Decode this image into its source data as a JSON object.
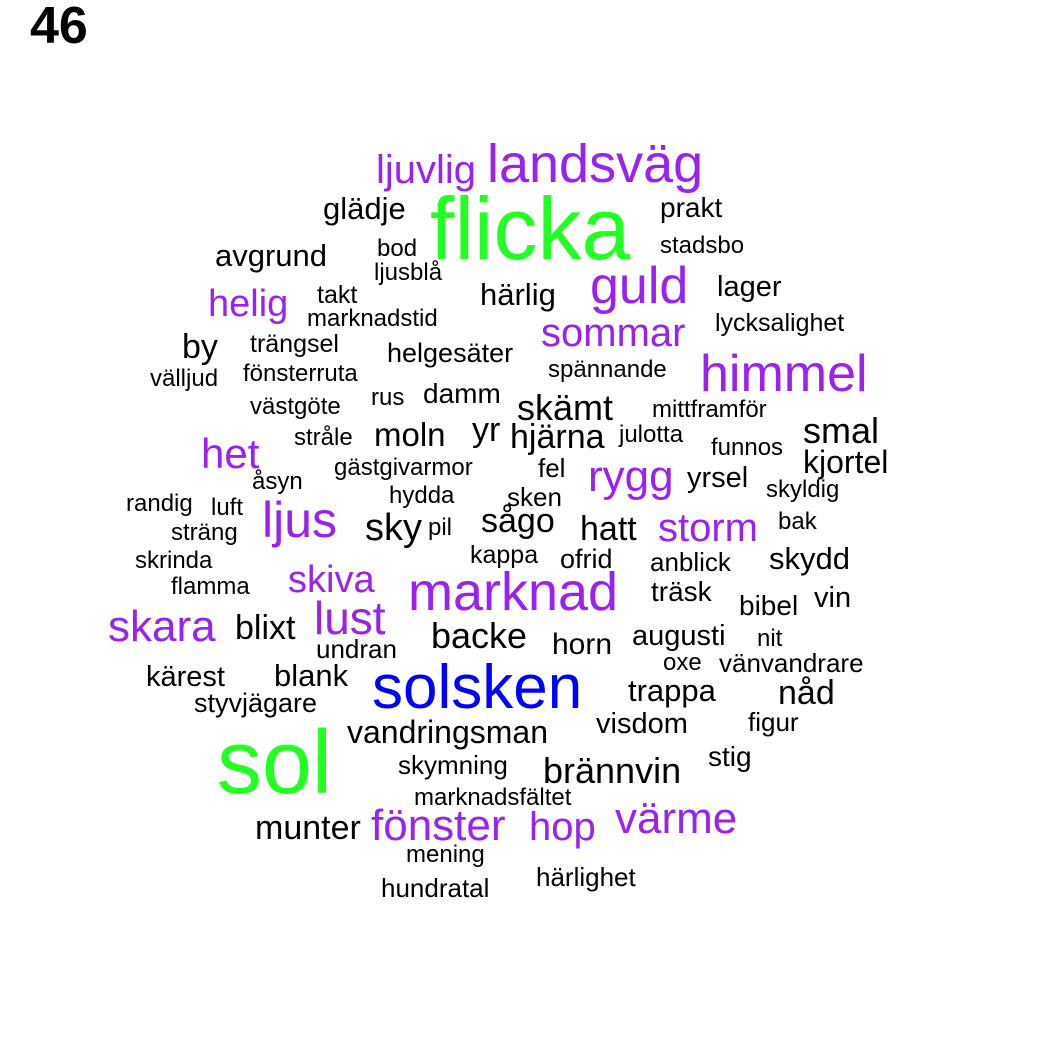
{
  "page_number": "46",
  "colors": {
    "green": "#22ff22",
    "blue": "#0000ff",
    "purple": "#9922ee",
    "black": "#000000"
  },
  "words": [
    {
      "text": "landsväg",
      "color": "purple"
    },
    {
      "text": "ljuvlig",
      "color": "purple"
    },
    {
      "text": "glädje",
      "color": "black"
    },
    {
      "text": "flicka",
      "color": "green"
    },
    {
      "text": "prakt",
      "color": "black"
    },
    {
      "text": "avgrund",
      "color": "black"
    },
    {
      "text": "bod",
      "color": "black"
    },
    {
      "text": "stadsbo",
      "color": "black"
    },
    {
      "text": "ljusblå",
      "color": "black"
    },
    {
      "text": "guld",
      "color": "purple"
    },
    {
      "text": "lager",
      "color": "black"
    },
    {
      "text": "helig",
      "color": "purple"
    },
    {
      "text": "takt",
      "color": "black"
    },
    {
      "text": "härlig",
      "color": "black"
    },
    {
      "text": "marknadstid",
      "color": "black"
    },
    {
      "text": "sommar",
      "color": "purple"
    },
    {
      "text": "lycksalighet",
      "color": "black"
    },
    {
      "text": "by",
      "color": "black"
    },
    {
      "text": "trängsel",
      "color": "black"
    },
    {
      "text": "helgesäter",
      "color": "black"
    },
    {
      "text": "himmel",
      "color": "purple"
    },
    {
      "text": "spännande",
      "color": "black"
    },
    {
      "text": "välljud",
      "color": "black"
    },
    {
      "text": "fönsterruta",
      "color": "black"
    },
    {
      "text": "damm",
      "color": "black"
    },
    {
      "text": "rus",
      "color": "black"
    },
    {
      "text": "västgöte",
      "color": "black"
    },
    {
      "text": "skämt",
      "color": "black"
    },
    {
      "text": "mittframför",
      "color": "black"
    },
    {
      "text": "yr",
      "color": "black"
    },
    {
      "text": "smal",
      "color": "black"
    },
    {
      "text": "moln",
      "color": "black"
    },
    {
      "text": "hjärna",
      "color": "black"
    },
    {
      "text": "julotta",
      "color": "black"
    },
    {
      "text": "stråle",
      "color": "black"
    },
    {
      "text": "het",
      "color": "purple"
    },
    {
      "text": "funnos",
      "color": "black"
    },
    {
      "text": "kjortel",
      "color": "black"
    },
    {
      "text": "gästgivarmor",
      "color": "black"
    },
    {
      "text": "fel",
      "color": "black"
    },
    {
      "text": "rygg",
      "color": "purple"
    },
    {
      "text": "åsyn",
      "color": "black"
    },
    {
      "text": "yrsel",
      "color": "black"
    },
    {
      "text": "skyldig",
      "color": "black"
    },
    {
      "text": "randig",
      "color": "black"
    },
    {
      "text": "hydda",
      "color": "black"
    },
    {
      "text": "sken",
      "color": "black"
    },
    {
      "text": "luft",
      "color": "black"
    },
    {
      "text": "ljus",
      "color": "purple"
    },
    {
      "text": "sågo",
      "color": "black"
    },
    {
      "text": "bak",
      "color": "black"
    },
    {
      "text": "sträng",
      "color": "black"
    },
    {
      "text": "sky",
      "color": "black"
    },
    {
      "text": "pil",
      "color": "black"
    },
    {
      "text": "hatt",
      "color": "black"
    },
    {
      "text": "storm",
      "color": "purple"
    },
    {
      "text": "kappa",
      "color": "black"
    },
    {
      "text": "skrinda",
      "color": "black"
    },
    {
      "text": "ofrid",
      "color": "black"
    },
    {
      "text": "anblick",
      "color": "black"
    },
    {
      "text": "skydd",
      "color": "black"
    },
    {
      "text": "skiva",
      "color": "purple"
    },
    {
      "text": "flamma",
      "color": "black"
    },
    {
      "text": "marknad",
      "color": "purple"
    },
    {
      "text": "träsk",
      "color": "black"
    },
    {
      "text": "vin",
      "color": "black"
    },
    {
      "text": "bibel",
      "color": "black"
    },
    {
      "text": "lust",
      "color": "purple"
    },
    {
      "text": "skara",
      "color": "purple"
    },
    {
      "text": "blixt",
      "color": "black"
    },
    {
      "text": "backe",
      "color": "black"
    },
    {
      "text": "augusti",
      "color": "black"
    },
    {
      "text": "nit",
      "color": "black"
    },
    {
      "text": "horn",
      "color": "black"
    },
    {
      "text": "undran",
      "color": "black"
    },
    {
      "text": "oxe",
      "color": "black"
    },
    {
      "text": "vänvandrare",
      "color": "black"
    },
    {
      "text": "kärest",
      "color": "black"
    },
    {
      "text": "blank",
      "color": "black"
    },
    {
      "text": "solsken",
      "color": "blue"
    },
    {
      "text": "nåd",
      "color": "black"
    },
    {
      "text": "trappa",
      "color": "black"
    },
    {
      "text": "styvjägare",
      "color": "black"
    },
    {
      "text": "figur",
      "color": "black"
    },
    {
      "text": "visdom",
      "color": "black"
    },
    {
      "text": "vandringsman",
      "color": "black"
    },
    {
      "text": "sol",
      "color": "green"
    },
    {
      "text": "stig",
      "color": "black"
    },
    {
      "text": "skymning",
      "color": "black"
    },
    {
      "text": "brännvin",
      "color": "black"
    },
    {
      "text": "marknadsfältet",
      "color": "black"
    },
    {
      "text": "värme",
      "color": "purple"
    },
    {
      "text": "munter",
      "color": "black"
    },
    {
      "text": "fönster",
      "color": "purple"
    },
    {
      "text": "hop",
      "color": "purple"
    },
    {
      "text": "mening",
      "color": "black"
    },
    {
      "text": "härlighet",
      "color": "black"
    },
    {
      "text": "hundratal",
      "color": "black"
    }
  ]
}
